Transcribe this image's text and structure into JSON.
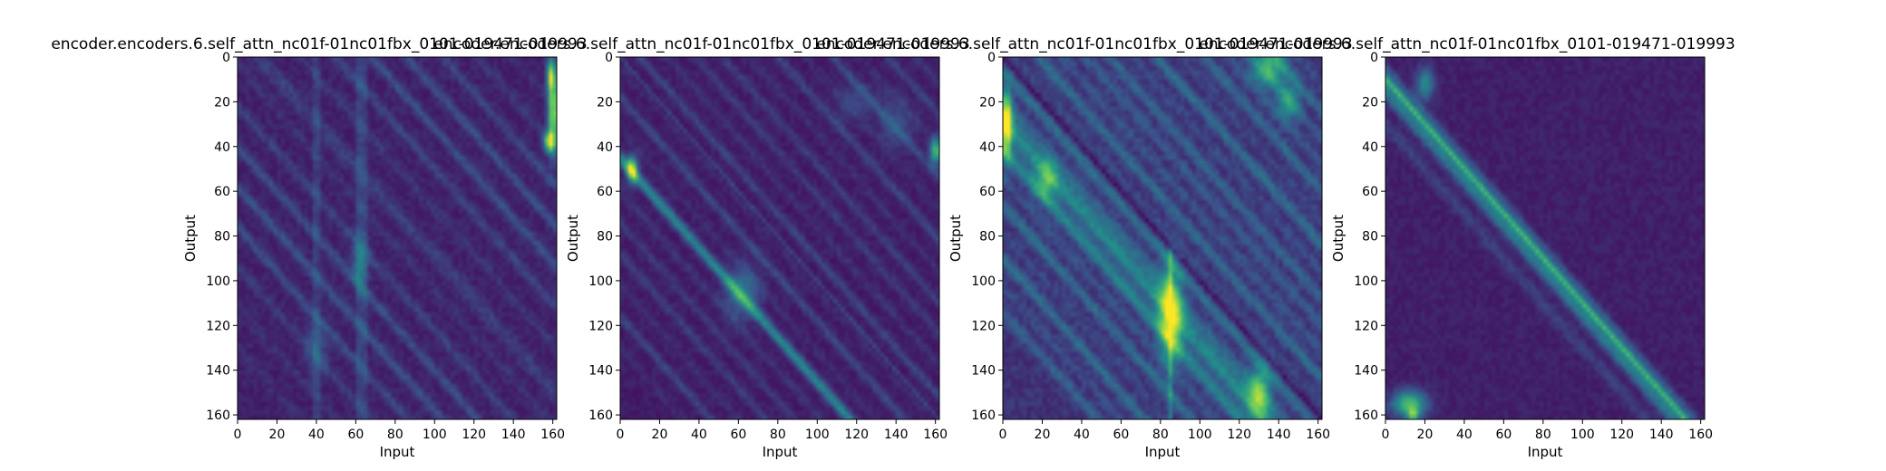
{
  "figure": {
    "background": "#ffffff",
    "colormap": "viridis",
    "colormap_stops": [
      "#440154",
      "#3b528b",
      "#21918c",
      "#5ec962",
      "#fde725"
    ]
  },
  "chart_data": [
    {
      "type": "heatmap",
      "title": "encoder.encoders.6.self_attn_nc01f-01nc01fbx_0101-019471-019993",
      "xlabel": "Input",
      "ylabel": "Output",
      "rows": 162,
      "cols": 162,
      "xlim": [
        0,
        162
      ],
      "ylim": [
        162,
        0
      ],
      "xticks": [
        0,
        20,
        40,
        60,
        80,
        100,
        120,
        140,
        160
      ],
      "yticks": [
        0,
        20,
        40,
        60,
        80,
        100,
        120,
        140,
        160
      ],
      "pattern": "diffuse diagonal stripes, bright band near input 158-161 at outputs 5-40, faint vertical lines near inputs 40, 62, 65"
    },
    {
      "type": "heatmap",
      "title": "encoder.encoders.6.self_attn_nc01f-01nc01fbx_0101-019471-019993",
      "xlabel": "Input",
      "ylabel": "Output",
      "rows": 162,
      "cols": 162,
      "xlim": [
        0,
        162
      ],
      "ylim": [
        162,
        0
      ],
      "xticks": [
        0,
        20,
        40,
        60,
        80,
        100,
        120,
        140,
        160
      ],
      "yticks": [
        0,
        20,
        40,
        60,
        80,
        100,
        120,
        140,
        160
      ],
      "pattern": "diagonal stripes parallel to main diagonal, bright spots near (5,50) and (160,42), band along x=y-45"
    },
    {
      "type": "heatmap",
      "title": "encoder.encoders.6.self_attn_nc01f-01nc01fbx_0101-019471-019993",
      "xlabel": "Input",
      "ylabel": "Output",
      "rows": 162,
      "cols": 162,
      "xlim": [
        0,
        162
      ],
      "ylim": [
        162,
        0
      ],
      "xticks": [
        0,
        20,
        40,
        60,
        80,
        100,
        120,
        140,
        160
      ],
      "yticks": [
        0,
        20,
        40,
        60,
        80,
        100,
        120,
        140,
        160
      ],
      "pattern": "strong diagonal bands below main diagonal, bright around input 80-90 at outputs 100-130, bright strip near input 0-5 at outputs 20-40"
    },
    {
      "type": "heatmap",
      "title": "encoder.encoders.6.self_attn_nc01f-01nc01fbx_0101-019471-019993",
      "xlabel": "Input",
      "ylabel": "Output",
      "rows": 162,
      "cols": 162,
      "xlim": [
        0,
        162
      ],
      "ylim": [
        162,
        0
      ],
      "xticks": [
        0,
        20,
        40,
        60,
        80,
        100,
        120,
        140,
        160
      ],
      "yticks": [
        0,
        20,
        40,
        60,
        80,
        100,
        120,
        140,
        160
      ],
      "pattern": "single strong band along y = x - 10, bright patch near (10,155)"
    }
  ]
}
